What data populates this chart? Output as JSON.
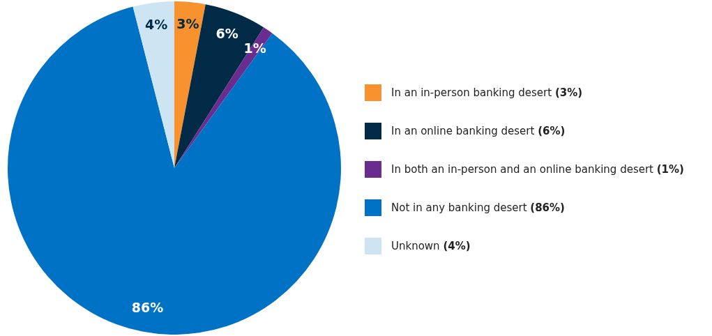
{
  "chart_data": {
    "type": "pie",
    "categories": [
      "In an in-person banking desert (3%)",
      "In an online banking desert (6%)",
      "In both an in-person and an online banking desert (1%)",
      "Not in any banking desert (86%)",
      "Unknown (4%)"
    ],
    "values": [
      3,
      6,
      1,
      86,
      4
    ],
    "colors": [
      "#f7922f",
      "#002a45",
      "#6b2c8f",
      "#0072c6",
      "#cde4f3"
    ],
    "value_labels": [
      "3%",
      "6%",
      "1%",
      "86%",
      "4%"
    ],
    "legend": "right"
  }
}
